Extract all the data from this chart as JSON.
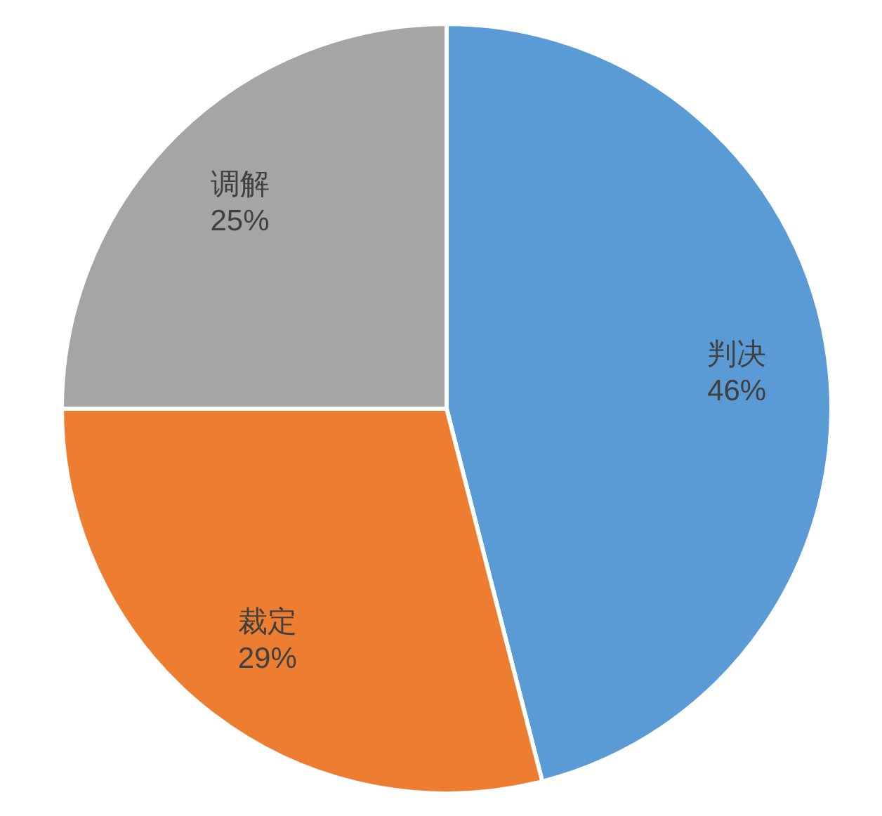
{
  "chart_data": {
    "type": "pie",
    "categories": [
      "判决",
      "裁定",
      "调解"
    ],
    "values": [
      46,
      29,
      25
    ],
    "value_labels": [
      "46%",
      "29%",
      "25%"
    ],
    "colors": [
      "#5b9bd5",
      "#ed7d31",
      "#a5a5a5"
    ]
  }
}
